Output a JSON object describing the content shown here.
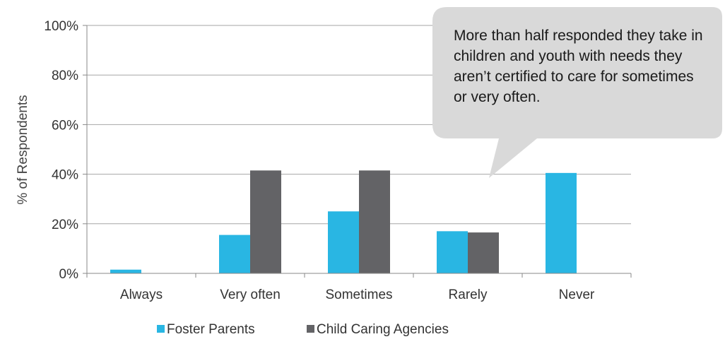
{
  "chart_data": {
    "type": "bar",
    "categories": [
      "Always",
      "Very often",
      "Sometimes",
      "Rarely",
      "Never"
    ],
    "series": [
      {
        "name": "Foster Parents",
        "values": [
          1.5,
          15.5,
          25,
          17,
          40.5
        ],
        "color": "#29b6e3"
      },
      {
        "name": "Child Caring Agencies",
        "values": [
          0,
          41.5,
          41.5,
          16.5,
          0
        ],
        "color": "#636366"
      }
    ],
    "ylabel": "% of Respondents",
    "xlabel": "",
    "ylim": [
      0,
      100
    ],
    "yticks": [
      0,
      20,
      40,
      60,
      80,
      100
    ],
    "ytick_labels": [
      "0%",
      "20%",
      "40%",
      "60%",
      "80%",
      "100%"
    ],
    "grid": true,
    "legend_position": "bottom",
    "annotation": "More than half responded they take in children and youth with needs they aren’t certified to care for sometimes or very often."
  },
  "colors": {
    "callout_fill": "#d9d9d9",
    "gridline": "#a6a6a6"
  }
}
